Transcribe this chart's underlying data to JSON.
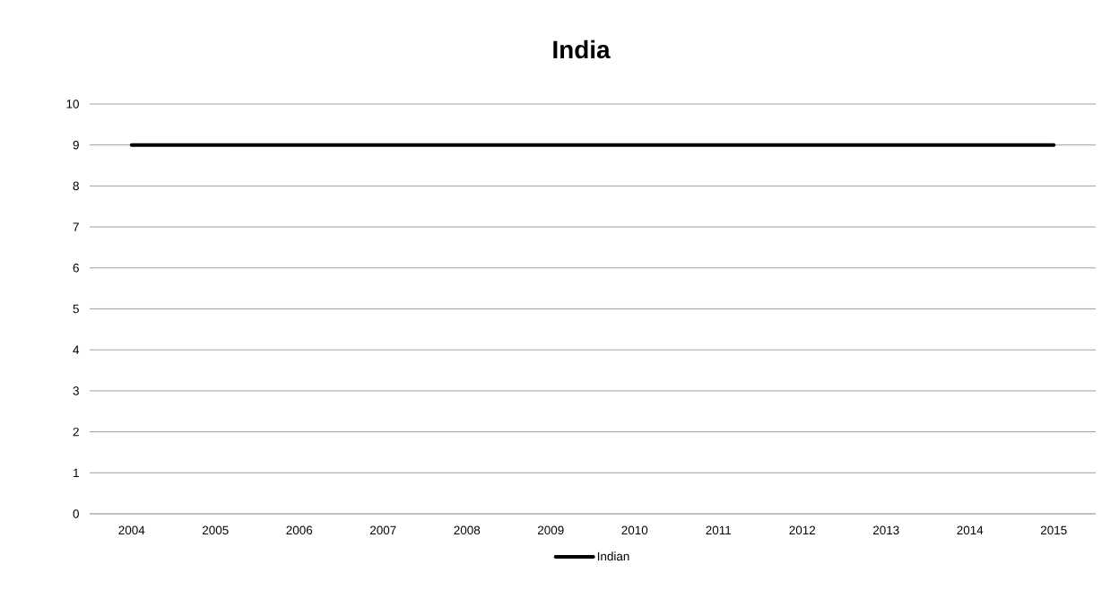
{
  "chart_data": {
    "type": "line",
    "title": "India",
    "categories": [
      "2004",
      "2005",
      "2006",
      "2007",
      "2008",
      "2009",
      "2010",
      "2011",
      "2012",
      "2013",
      "2014",
      "2015"
    ],
    "series": [
      {
        "name": "Indian",
        "color": "#000000",
        "values": [
          9,
          9,
          9,
          9,
          9,
          9,
          9,
          9,
          9,
          9,
          9,
          9
        ]
      }
    ],
    "ylim": [
      0,
      10
    ],
    "yticks": [
      0,
      1,
      2,
      3,
      4,
      5,
      6,
      7,
      8,
      9,
      10
    ],
    "grid": "y",
    "legend": "bottom",
    "marker": "none",
    "line_style": "solid"
  }
}
